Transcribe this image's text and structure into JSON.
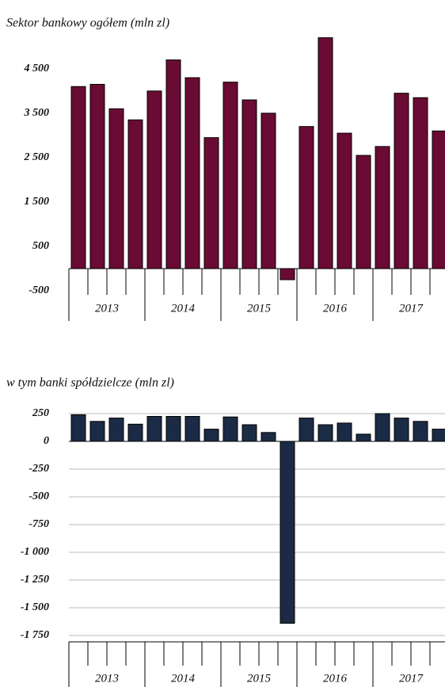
{
  "chart_data": [
    {
      "type": "bar",
      "title": "Sektor bankowy ogółem (mln zl)",
      "categories": [
        null,
        null,
        null,
        null,
        null,
        null,
        null,
        null,
        null,
        null,
        null,
        null,
        null,
        null,
        null,
        null,
        null,
        null,
        null,
        null
      ],
      "year_labels": [
        "2013",
        "2014",
        "2015",
        "2016",
        "2017"
      ],
      "values": [
        4100,
        4150,
        3600,
        3350,
        4000,
        4700,
        4300,
        2950,
        4200,
        3800,
        3500,
        -250,
        3200,
        5200,
        3050,
        2550,
        2750,
        3950,
        3850,
        3100
      ],
      "color": "#6a0b33",
      "ylim": [
        -500,
        5300
      ],
      "yticks": [
        -500,
        500,
        {
          "value": 1500,
          "label": "1 500"
        },
        {
          "value": 2500,
          "label": "2 500"
        },
        {
          "value": 3500,
          "label": "3 500"
        },
        {
          "value": 4500,
          "label": "4 500"
        }
      ],
      "grid": false
    },
    {
      "type": "bar",
      "title": "w tym banki spółdzielcze (mln zl)",
      "categories": [
        null,
        null,
        null,
        null,
        null,
        null,
        null,
        null,
        null,
        null,
        null,
        null,
        null,
        null,
        null,
        null,
        null,
        null,
        null,
        null
      ],
      "year_labels": [
        "2013",
        "2014",
        "2015",
        "2016",
        "2017"
      ],
      "values": [
        240,
        180,
        210,
        155,
        225,
        225,
        225,
        110,
        220,
        150,
        80,
        -1640,
        210,
        150,
        165,
        65,
        250,
        210,
        180,
        110
      ],
      "color": "#1b2b45",
      "ylim": [
        -1750,
        300
      ],
      "yticks": [
        {
          "value": -1750,
          "label": "-1 750"
        },
        {
          "value": -1500,
          "label": "-1 500"
        },
        {
          "value": -1250,
          "label": "-1 250"
        },
        {
          "value": -1000,
          "label": "-1 000"
        },
        -750,
        -500,
        -250,
        0,
        250
      ],
      "grid": true
    }
  ]
}
